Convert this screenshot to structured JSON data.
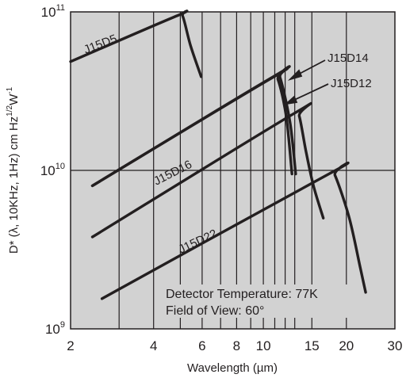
{
  "chart_data": {
    "type": "line",
    "xlabel": "Wavelength (µm)",
    "ylabel": "D* (λ, 10KHz, 1Hz) cm Hz1/2W-1",
    "ylabel_parts": {
      "main": "D* (λ, 10KHz, 1Hz) cm Hz",
      "sup1": "1/2",
      "mid": "W",
      "sup2": "-1"
    },
    "x_scale": "log",
    "y_scale": "log",
    "xlim": [
      2,
      30
    ],
    "ylim": [
      1000000000,
      100000000000
    ],
    "x_ticks": [
      {
        "value": 2,
        "label": "2"
      },
      {
        "value": 4,
        "label": "4"
      },
      {
        "value": 6,
        "label": "6"
      },
      {
        "value": 8,
        "label": "8"
      },
      {
        "value": 10,
        "label": "10"
      },
      {
        "value": 15,
        "label": "15"
      },
      {
        "value": 20,
        "label": "20"
      },
      {
        "value": 30,
        "label": "30"
      }
    ],
    "y_ticks": [
      {
        "value": 1000000000,
        "base": "10",
        "exp": "9"
      },
      {
        "value": 10000000000,
        "base": "10",
        "exp": "10"
      },
      {
        "value": 100000000000,
        "base": "10",
        "exp": "11"
      }
    ],
    "vertical_gridlines": [
      3,
      4,
      5,
      6,
      7,
      8,
      9,
      10,
      11,
      12,
      13,
      15,
      20
    ],
    "horizontal_gridlines": [
      10000000000
    ],
    "background": "#d2d2d2",
    "line_color": "#231f20",
    "series": [
      {
        "name": "J15D5",
        "points": [
          [
            2.0,
            48600000000.0
          ],
          [
            4.9,
            95000000000.0
          ],
          [
            5.1,
            94000000000.0
          ],
          [
            5.45,
            61000000000.0
          ],
          [
            5.95,
            39000000000.0
          ]
        ]
      },
      {
        "name": "J15D14",
        "points": [
          [
            2.4,
            8000000000.0
          ],
          [
            11.0,
            39500000000.0
          ],
          [
            11.5,
            38500000000.0
          ],
          [
            12.5,
            20000000000.0
          ],
          [
            13.1,
            9500000000.0
          ]
        ]
      },
      {
        "name": "J15D12",
        "points": [
          [
            2.4,
            3800000000.0
          ],
          [
            13.0,
            23000000000.0
          ],
          [
            13.5,
            22000000000.0
          ],
          [
            14.3,
            13000000000.0
          ],
          [
            15.2,
            8000000000.0
          ],
          [
            16.5,
            5000000000.0
          ]
        ]
      },
      {
        "name": "J15D16",
        "points": [
          [
            2.4,
            8000000000.0
          ],
          [
            10.8,
            38500000000.0
          ],
          [
            11.3,
            37500000000.0
          ],
          [
            12.1,
            22000000000.0
          ],
          [
            12.7,
            9500000000.0
          ]
        ]
      },
      {
        "name": "J15D22",
        "points": [
          [
            2.6,
            1550000000.0
          ],
          [
            17.5,
            9600000000.0
          ],
          [
            18.2,
            9300000000.0
          ],
          [
            20.5,
            5000000000.0
          ],
          [
            22.5,
            2400000000.0
          ],
          [
            23.5,
            1700000000.0
          ]
        ]
      }
    ],
    "annotations": [
      "Detector Temperature: 77K",
      "Field of View: 60°"
    ]
  }
}
